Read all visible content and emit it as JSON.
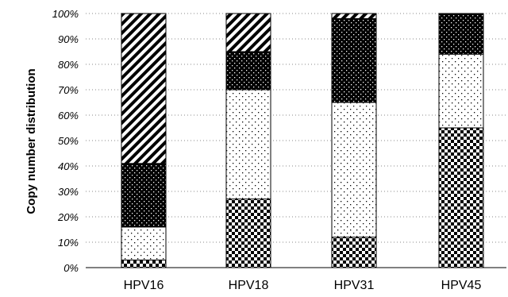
{
  "chart_data": {
    "type": "bar",
    "stacked": true,
    "normalized": true,
    "categories": [
      "HPV16",
      "HPV18",
      "HPV31",
      "HPV45"
    ],
    "ylabel": "Copy number distribution",
    "xlabel": "",
    "ylim": [
      0,
      100
    ],
    "y_ticks": [
      "0%",
      "10%",
      "20%",
      "30%",
      "40%",
      "50%",
      "60%",
      "70%",
      "80%",
      "90%",
      "100%"
    ],
    "grid": "horizontal dotted",
    "series": [
      {
        "pattern": "checker",
        "values": [
          3,
          27,
          12,
          55
        ]
      },
      {
        "pattern": "sparse-dots",
        "values": [
          13,
          43,
          53,
          29
        ]
      },
      {
        "pattern": "dark-dots",
        "values": [
          25,
          15,
          33,
          16
        ]
      },
      {
        "pattern": "diagonal-stripes",
        "values": [
          59,
          15,
          2,
          0
        ]
      }
    ]
  }
}
